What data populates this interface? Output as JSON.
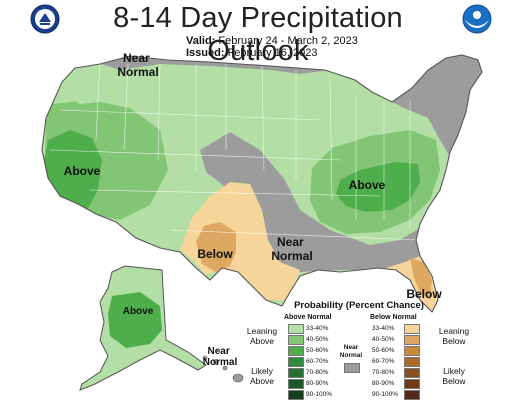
{
  "title": "8-14 Day Precipitation Outlook",
  "valid": {
    "label": "Valid:",
    "value": "February 24 - March 2, 2023"
  },
  "issued": {
    "label": "Issued:",
    "value": "February 16, 2023"
  },
  "logos": {
    "left": "doc-seal-icon",
    "right": "noaa-logo-icon"
  },
  "map_labels": {
    "near_normal_nw": [
      "Near",
      "Normal"
    ],
    "above_west": "Above",
    "above_east": "Above",
    "below_tx": "Below",
    "near_normal_south": [
      "Near",
      "Normal"
    ],
    "below_fl": "Below",
    "above_alaska": "Above",
    "near_normal_hi": [
      "Near",
      "Normal"
    ]
  },
  "colors": {
    "above": [
      "#b3dfa6",
      "#82c574",
      "#4fae4c",
      "#2e8a3d",
      "#257032",
      "#1e5728",
      "#173f1c"
    ],
    "below": [
      "#f6d59a",
      "#dca862",
      "#c98a3c",
      "#aa6a2c",
      "#8a5020",
      "#6e3a18",
      "#54291a"
    ],
    "near_normal": "#9c9c9c"
  },
  "legend": {
    "title": "Probability (Percent Chance)",
    "above_header": "Above Normal",
    "below_header": "Below Normal",
    "near_normal_label": [
      "Near",
      "Normal"
    ],
    "ranges": [
      "33-40%",
      "40-50%",
      "50-60%",
      "60-70%",
      "70-80%",
      "80-90%",
      "90-100%"
    ],
    "leaning_above": [
      "Leaning",
      "Above"
    ],
    "likely_above": [
      "Likely",
      "Above"
    ],
    "leaning_below": [
      "Leaning",
      "Below"
    ],
    "likely_below": [
      "Likely",
      "Below"
    ]
  }
}
